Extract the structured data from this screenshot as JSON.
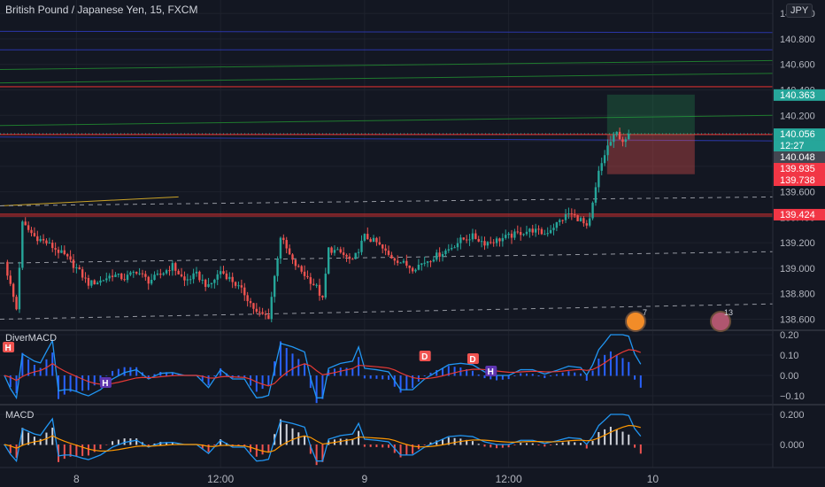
{
  "header": {
    "symbol": "British Pound / Japanese Yen, 15, FXCM",
    "currency": "JPY"
  },
  "price_axis": {
    "ticks": [
      "141.000",
      "140.800",
      "140.600",
      "140.400",
      "140.200",
      "140.000",
      "139.800",
      "139.600",
      "139.400",
      "139.200",
      "139.000",
      "138.800",
      "138.600"
    ]
  },
  "price_badges": [
    {
      "value": "140.363",
      "color": "#26a69a"
    },
    {
      "value": "140.056",
      "color": "#26a69a"
    },
    {
      "value": "12:27",
      "color": "#26a69a"
    },
    {
      "value": "140.048",
      "color": "#434651"
    },
    {
      "value": "139.935",
      "color": "#f23645"
    },
    {
      "value": "139.738",
      "color": "#f23645"
    },
    {
      "value": "139.424",
      "color": "#f23645"
    }
  ],
  "time_axis": {
    "labels": [
      "8",
      "12:00",
      "9",
      "12:00",
      "10",
      "12:00"
    ]
  },
  "panes": {
    "divermacd": {
      "label": "DiverMACD",
      "ticks": [
        "0.20",
        "0.10",
        "0.00",
        "−0.10"
      ],
      "markers": [
        {
          "text": "H",
          "kind": "bull"
        },
        {
          "text": "H",
          "kind": "bear"
        },
        {
          "text": "D",
          "kind": "bull"
        },
        {
          "text": "D",
          "kind": "bull"
        },
        {
          "text": "H",
          "kind": "bear"
        }
      ]
    },
    "macd": {
      "label": "MACD",
      "ticks": [
        "0.200",
        "0.000"
      ]
    }
  },
  "events": [
    {
      "count": "7"
    },
    {
      "count": "13"
    }
  ],
  "colors": {
    "bg": "#131722",
    "up": "#26a69a",
    "down": "#ef5350",
    "grid": "#1e222d"
  },
  "chart_data": {
    "type": "candlestick",
    "title": "British Pound / Japanese Yen, 15, FXCM",
    "ylim": [
      138.52,
      141.05
    ],
    "x_range_hours": [
      0,
      64
    ],
    "tick_times": [
      6,
      18,
      30,
      42,
      54,
      66
    ],
    "close_path": [
      [
        0,
        139.05
      ],
      [
        1,
        138.68
      ],
      [
        1.5,
        139.35
      ],
      [
        2.5,
        139.25
      ],
      [
        3.5,
        139.2
      ],
      [
        5,
        139.1
      ],
      [
        6,
        139.0
      ],
      [
        7,
        138.88
      ],
      [
        8,
        138.9
      ],
      [
        9,
        138.95
      ],
      [
        10,
        138.92
      ],
      [
        11,
        138.98
      ],
      [
        12,
        138.9
      ],
      [
        13,
        138.95
      ],
      [
        14,
        139.02
      ],
      [
        15,
        138.9
      ],
      [
        16,
        138.95
      ],
      [
        17,
        138.85
      ],
      [
        18,
        138.98
      ],
      [
        19,
        138.9
      ],
      [
        20,
        138.8
      ],
      [
        21,
        138.65
      ],
      [
        22,
        138.62
      ],
      [
        23,
        139.25
      ],
      [
        24,
        139.05
      ],
      [
        25,
        138.95
      ],
      [
        26,
        138.85
      ],
      [
        26.5,
        138.75
      ],
      [
        27,
        139.15
      ],
      [
        28,
        139.12
      ],
      [
        29,
        139.05
      ],
      [
        30,
        139.25
      ],
      [
        31,
        139.2
      ],
      [
        32,
        139.1
      ],
      [
        33,
        139.05
      ],
      [
        34,
        139.0
      ],
      [
        35,
        139.05
      ],
      [
        36,
        139.1
      ],
      [
        37,
        139.15
      ],
      [
        38,
        139.22
      ],
      [
        39,
        139.25
      ],
      [
        40,
        139.2
      ],
      [
        41,
        139.22
      ],
      [
        42,
        139.25
      ],
      [
        43,
        139.28
      ],
      [
        44,
        139.3
      ],
      [
        45,
        139.27
      ],
      [
        46,
        139.35
      ],
      [
        47,
        139.43
      ],
      [
        48,
        139.38
      ],
      [
        48.6,
        139.3
      ],
      [
        49.5,
        139.75
      ],
      [
        50.2,
        139.95
      ],
      [
        51,
        140.06
      ],
      [
        51.7,
        139.98
      ],
      [
        52,
        140.05
      ]
    ],
    "dashed_levels": [
      139.5,
      139.0,
      138.6
    ],
    "red_levels": [
      140.425,
      140.05,
      139.424
    ],
    "position": {
      "entry": 140.048,
      "target": 140.363,
      "stop": 139.738
    },
    "time_axis_labels": [
      "8",
      "12:00",
      "9",
      "12:00",
      "10",
      "12:00"
    ]
  }
}
